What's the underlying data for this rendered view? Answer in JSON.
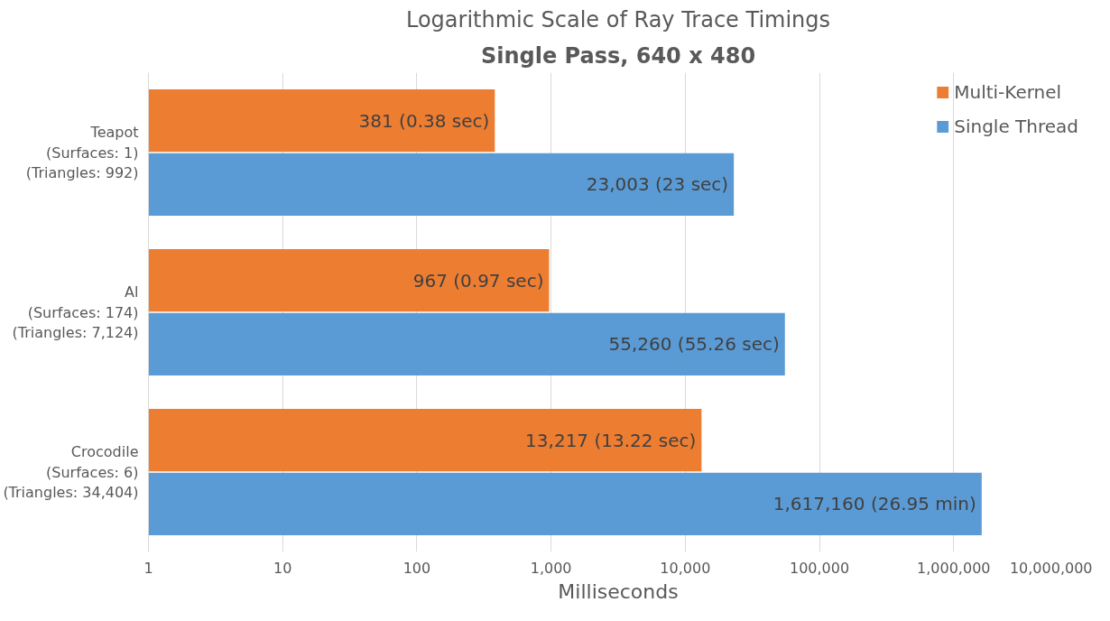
{
  "chart_data": {
    "type": "bar",
    "orientation": "horizontal",
    "title": "Logarithmic Scale of Ray Trace Timings",
    "subtitle": "Single Pass, 640 x 480",
    "xlabel": "Milliseconds",
    "categories": [
      "Teapot\n(Surfaces: 1)\n(Triangles: 992)",
      "Al\n(Surfaces: 174)\n(Triangles: 7,124)",
      "Crocodile\n(Surfaces: 6)\n(Triangles: 34,404)"
    ],
    "series": [
      {
        "name": "Multi-Kernel",
        "color": "#ed7d31",
        "values": [
          381,
          967,
          13217
        ],
        "value_labels": [
          "381 (0.38 sec)",
          "967 (0.97 sec)",
          "13,217 (13.22 sec)"
        ]
      },
      {
        "name": "Single Thread",
        "color": "#5b9bd5",
        "values": [
          23003,
          55260,
          1617160
        ],
        "value_labels": [
          "23,003 (23 sec)",
          "55,260 (55.26 sec)",
          "1,617,160 (26.95 min)"
        ]
      }
    ],
    "log": "x",
    "xlim": [
      1,
      10000000
    ],
    "xticks": [
      1,
      10,
      100,
      {
        "value": 1000,
        "label": "1,000"
      },
      {
        "value": 10000,
        "label": "10,000"
      },
      {
        "value": 100000,
        "label": "100,000"
      },
      {
        "value": 1000000,
        "label": "1,000,000"
      },
      {
        "value": 10000000,
        "label": "10,000,000"
      }
    ],
    "grid": "x",
    "legend": "top right"
  }
}
